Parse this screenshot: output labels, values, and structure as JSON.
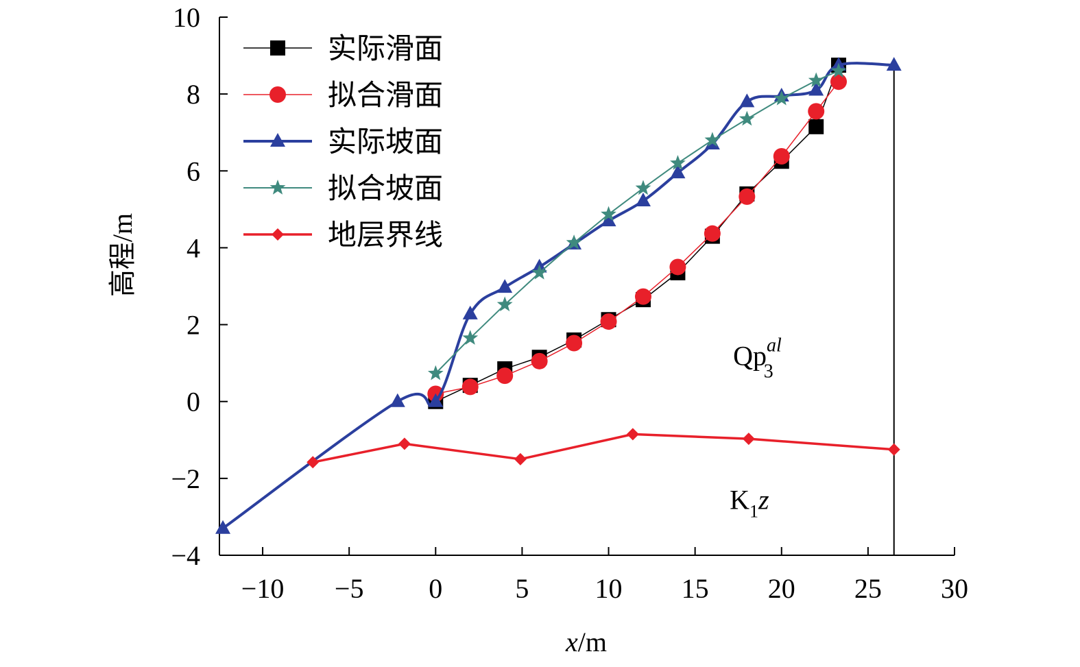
{
  "chart_data": {
    "type": "line",
    "xlabel": "x/m",
    "ylabel": "高程/m",
    "xlim": [
      -12.5,
      30
    ],
    "ylim": [
      -4,
      10
    ],
    "xticks": [
      -10,
      -5,
      0,
      5,
      10,
      15,
      20,
      25,
      30
    ],
    "yticks": [
      -4,
      -2,
      0,
      2,
      4,
      6,
      8,
      10
    ],
    "xtick_labels": [
      "−10",
      "−5",
      "0",
      "5",
      "10",
      "15",
      "20",
      "25",
      "30"
    ],
    "ytick_labels": [
      "−4",
      "−2",
      "0",
      "2",
      "4",
      "6",
      "8",
      "10"
    ],
    "legend_position": "top-left",
    "grid": false,
    "series": [
      {
        "name": "实际滑面",
        "marker": "square",
        "color": "#000000",
        "smooth": false,
        "x": [
          0,
          2,
          4,
          6,
          8,
          10,
          12,
          14,
          16,
          18,
          20,
          22,
          23.3
        ],
        "y": [
          0,
          0.42,
          0.85,
          1.15,
          1.6,
          2.13,
          2.65,
          3.35,
          4.3,
          5.4,
          6.25,
          7.15,
          8.75
        ]
      },
      {
        "name": "拟合滑面",
        "marker": "circle",
        "color": "#e8202a",
        "smooth": false,
        "x": [
          0,
          2,
          4,
          6,
          8,
          10,
          12,
          14,
          16,
          18,
          20,
          22,
          23.3
        ],
        "y": [
          0.2,
          0.38,
          0.67,
          1.05,
          1.52,
          2.08,
          2.73,
          3.5,
          4.37,
          5.33,
          6.38,
          7.55,
          8.32
        ]
      },
      {
        "name": "实际坡面",
        "marker": "triangle",
        "color": "#2b3f9e",
        "smooth": true,
        "x": [
          -12.3,
          -2.2,
          0,
          2,
          4,
          6,
          8,
          10,
          12,
          14,
          16,
          18,
          20,
          22,
          23.3,
          26.5
        ],
        "y": [
          -3.3,
          0,
          0,
          2.28,
          2.97,
          3.5,
          4.1,
          4.7,
          5.22,
          5.95,
          6.7,
          7.8,
          7.95,
          8.1,
          8.75,
          8.75
        ]
      },
      {
        "name": "拟合坡面",
        "marker": "star",
        "color": "#3f8a7e",
        "smooth": false,
        "x": [
          0,
          2,
          4,
          6,
          8,
          10,
          12,
          14,
          16,
          18,
          20,
          22,
          23.3
        ],
        "y": [
          0.73,
          1.65,
          2.52,
          3.35,
          4.13,
          4.87,
          5.55,
          6.2,
          6.8,
          7.35,
          7.88,
          8.35,
          8.6
        ]
      },
      {
        "name": "地层界线",
        "marker": "diamond",
        "color": "#e8202a",
        "smooth": false,
        "x": [
          -7.1,
          -1.8,
          4.9,
          11.4,
          18.1,
          26.5
        ],
        "y": [
          -1.58,
          -1.1,
          -1.5,
          -0.85,
          -0.97,
          -1.25
        ]
      }
    ],
    "vertical_line": {
      "x": 26.5,
      "y_from": -4,
      "y_to": 8.75
    },
    "annotations": [
      {
        "base": "Qp",
        "sub": "3",
        "sup": "al",
        "x": 17.2,
        "y": 0.95
      },
      {
        "base": "K",
        "sub": "1",
        "italic": "z",
        "x": 17.0,
        "y": -2.8
      }
    ]
  }
}
